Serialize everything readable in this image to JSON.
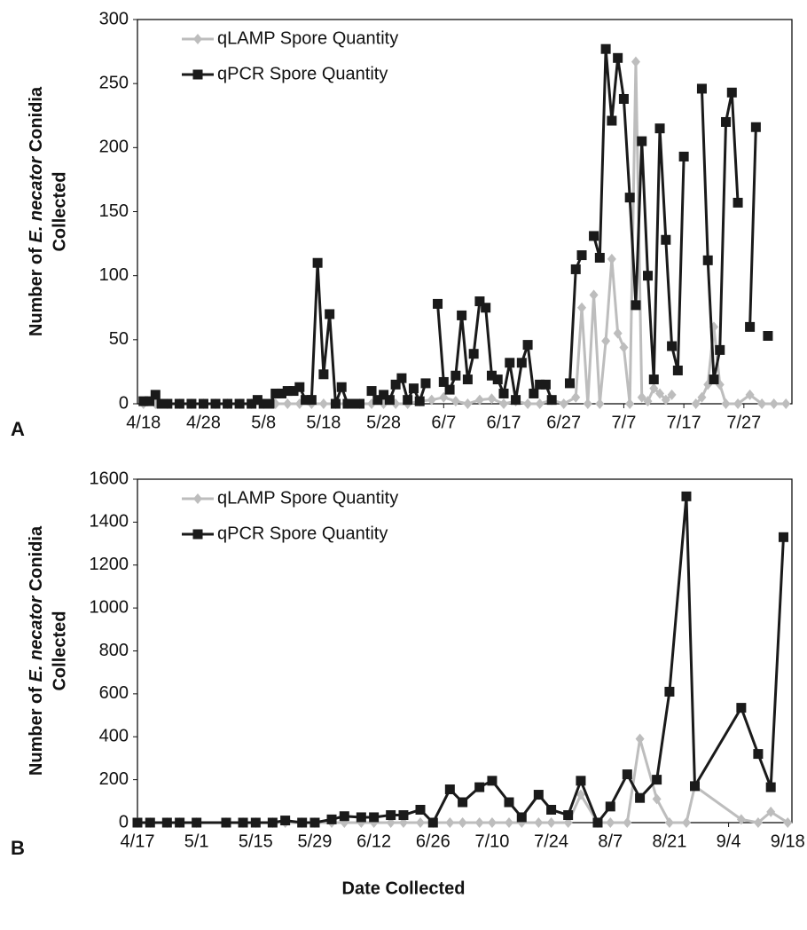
{
  "x_label": "Date Collected",
  "chart_data": [
    {
      "type": "line",
      "label": "A",
      "y_label": {
        "line1": [
          "Number of ",
          "E. necator",
          " Conidia"
        ],
        "line2": "Collected"
      },
      "xlim": [
        "4/17",
        "8/4"
      ],
      "xticks": [
        "4/18",
        "4/28",
        "5/8",
        "5/18",
        "5/28",
        "6/7",
        "6/17",
        "6/27",
        "7/7",
        "7/17",
        "7/27"
      ],
      "ylim": [
        0,
        300
      ],
      "yticks": [
        0,
        50,
        100,
        150,
        200,
        250,
        300
      ],
      "legend": "top-left",
      "series": [
        {
          "name": "qLAMP Spore Quantity",
          "color": "#bdbdbd",
          "marker": "diamond",
          "x": [
            "4/18",
            "4/20",
            "4/22",
            "4/24",
            "4/26",
            "4/28",
            "4/30",
            "5/2",
            "5/4",
            "5/6",
            "5/8",
            "5/10",
            "5/12",
            "5/14",
            "5/16",
            "5/18",
            "5/20",
            "5/22",
            "5/24",
            "5/26",
            "5/28",
            "5/30",
            "6/1",
            "6/3",
            "6/5",
            "6/7",
            "6/9",
            "6/11",
            "6/13",
            "6/15",
            "6/17",
            "6/19",
            "6/21",
            "6/23",
            "6/25",
            "6/27",
            "6/29",
            "6/30",
            "7/1",
            "7/2",
            "7/3",
            "7/4",
            "7/5",
            "7/6",
            "7/7",
            "7/8",
            "7/9",
            "7/10",
            "7/11",
            "7/12",
            "7/13",
            "7/14",
            "7/15",
            "7/17",
            "7/19",
            "7/20",
            "7/21",
            "7/22",
            "7/23",
            "7/24",
            "7/26",
            "7/28",
            "7/30",
            "8/1",
            "8/3"
          ],
          "values": [
            0,
            0,
            0,
            0,
            0,
            0,
            0,
            0,
            0,
            0,
            0,
            0,
            0,
            0,
            0,
            0,
            0,
            0,
            0,
            0,
            0,
            0,
            0,
            2,
            3,
            5,
            2,
            0,
            3,
            4,
            0,
            2,
            0,
            0,
            3,
            0,
            5,
            75,
            0,
            85,
            0,
            49,
            113,
            55,
            44,
            0,
            267,
            5,
            2,
            12,
            8,
            3,
            7,
            null,
            0,
            5,
            15,
            60,
            15,
            0,
            0,
            7,
            0,
            0,
            0
          ]
        },
        {
          "name": "qPCR Spore Quantity",
          "color": "#1a1a1a",
          "marker": "square",
          "x": [
            "4/18",
            "4/19",
            "4/20",
            "4/21",
            "4/22",
            "4/24",
            "4/26",
            "4/28",
            "4/30",
            "5/2",
            "5/4",
            "5/6",
            "5/7",
            "5/8",
            "5/9",
            "5/10",
            "5/11",
            "5/12",
            "5/13",
            "5/14",
            "5/15",
            "5/16",
            "5/17",
            "5/18",
            "5/19",
            "5/20",
            "5/21",
            "5/22",
            "5/23",
            "5/24",
            "5/25",
            "5/26",
            "5/27",
            "5/28",
            "5/29",
            "5/30",
            "5/31",
            "6/1",
            "6/2",
            "6/3",
            "6/4",
            "6/5",
            "6/6",
            "6/7",
            "6/8",
            "6/9",
            "6/10",
            "6/11",
            "6/12",
            "6/13",
            "6/14",
            "6/15",
            "6/16",
            "6/17",
            "6/18",
            "6/19",
            "6/20",
            "6/21",
            "6/22",
            "6/23",
            "6/24",
            "6/25",
            "6/26",
            "6/28",
            "6/29",
            "6/30",
            "7/1",
            "7/2",
            "7/3",
            "7/4",
            "7/5",
            "7/6",
            "7/7",
            "7/8",
            "7/9",
            "7/10",
            "7/11",
            "7/12",
            "7/13",
            "7/14",
            "7/15",
            "7/16",
            "7/17",
            "7/18",
            "7/20",
            "7/21",
            "7/22",
            "7/23",
            "7/24",
            "7/25",
            "7/26",
            "7/27",
            "7/28",
            "7/29",
            "7/30",
            "7/31"
          ],
          "values": [
            2,
            2,
            7,
            0,
            0,
            0,
            0,
            0,
            0,
            0,
            0,
            0,
            3,
            0,
            0,
            8,
            8,
            10,
            10,
            13,
            3,
            3,
            110,
            23,
            70,
            0,
            13,
            0,
            0,
            0,
            null,
            10,
            3,
            7,
            3,
            15,
            20,
            3,
            12,
            2,
            16,
            null,
            78,
            17,
            11,
            22,
            69,
            19,
            39,
            80,
            75,
            22,
            19,
            8,
            32,
            3,
            32,
            46,
            8,
            15,
            15,
            3,
            null,
            16,
            105,
            116,
            null,
            131,
            114,
            277,
            221,
            270,
            238,
            161,
            77,
            205,
            100,
            19,
            215,
            128,
            45,
            26,
            193,
            null,
            246,
            112,
            19,
            42,
            220,
            243,
            157,
            null,
            60,
            216,
            null,
            53
          ]
        }
      ]
    },
    {
      "type": "line",
      "label": "B",
      "y_label": {
        "line1": [
          "Number of ",
          "E. necator",
          " Conidia"
        ],
        "line2": "Collected"
      },
      "xlim": [
        "4/17",
        "9/19"
      ],
      "xticks": [
        "4/17",
        "5/1",
        "5/15",
        "5/29",
        "6/12",
        "6/26",
        "7/10",
        "7/24",
        "8/7",
        "8/21",
        "9/4",
        "9/18"
      ],
      "ylim": [
        0,
        1600
      ],
      "yticks": [
        0,
        200,
        400,
        600,
        800,
        1000,
        1200,
        1400,
        1600
      ],
      "legend": "top-left",
      "series": [
        {
          "name": "qLAMP Spore Quantity",
          "color": "#bdbdbd",
          "marker": "diamond",
          "x": [
            "4/17",
            "4/20",
            "4/24",
            "4/27",
            "5/1",
            "5/8",
            "5/12",
            "5/15",
            "5/19",
            "5/22",
            "5/26",
            "5/29",
            "6/2",
            "6/5",
            "6/9",
            "6/12",
            "6/16",
            "6/19",
            "6/23",
            "6/26",
            "6/30",
            "7/3",
            "7/7",
            "7/10",
            "7/14",
            "7/17",
            "7/21",
            "7/24",
            "7/28",
            "7/31",
            "8/4",
            "8/7",
            "8/11",
            "8/14",
            "8/18",
            "8/21",
            "8/25",
            "8/27",
            "9/7",
            "9/11",
            "9/14",
            "9/18"
          ],
          "values": [
            0,
            0,
            0,
            0,
            0,
            0,
            0,
            0,
            0,
            0,
            0,
            0,
            0,
            0,
            0,
            0,
            0,
            0,
            0,
            0,
            0,
            0,
            0,
            0,
            0,
            0,
            0,
            0,
            0,
            130,
            0,
            0,
            0,
            390,
            110,
            0,
            0,
            170,
            15,
            0,
            50,
            0
          ]
        },
        {
          "name": "qPCR Spore Quantity",
          "color": "#1a1a1a",
          "marker": "square",
          "x": [
            "4/17",
            "4/20",
            "4/24",
            "4/27",
            "5/1",
            "5/8",
            "5/12",
            "5/15",
            "5/19",
            "5/22",
            "5/26",
            "5/29",
            "6/2",
            "6/5",
            "6/9",
            "6/12",
            "6/16",
            "6/19",
            "6/23",
            "6/26",
            "6/30",
            "7/3",
            "7/7",
            "7/10",
            "7/14",
            "7/17",
            "7/21",
            "7/24",
            "7/28",
            "7/31",
            "8/4",
            "8/7",
            "8/11",
            "8/14",
            "8/18",
            "8/21",
            "8/25",
            "8/27",
            "9/7",
            "9/11",
            "9/14",
            "9/17"
          ],
          "values": [
            0,
            0,
            0,
            0,
            0,
            0,
            0,
            0,
            0,
            10,
            0,
            0,
            15,
            30,
            25,
            25,
            35,
            35,
            60,
            0,
            155,
            95,
            165,
            195,
            95,
            25,
            130,
            60,
            35,
            195,
            0,
            75,
            225,
            115,
            200,
            610,
            1520,
            170,
            535,
            320,
            165,
            1330
          ]
        }
      ]
    }
  ]
}
